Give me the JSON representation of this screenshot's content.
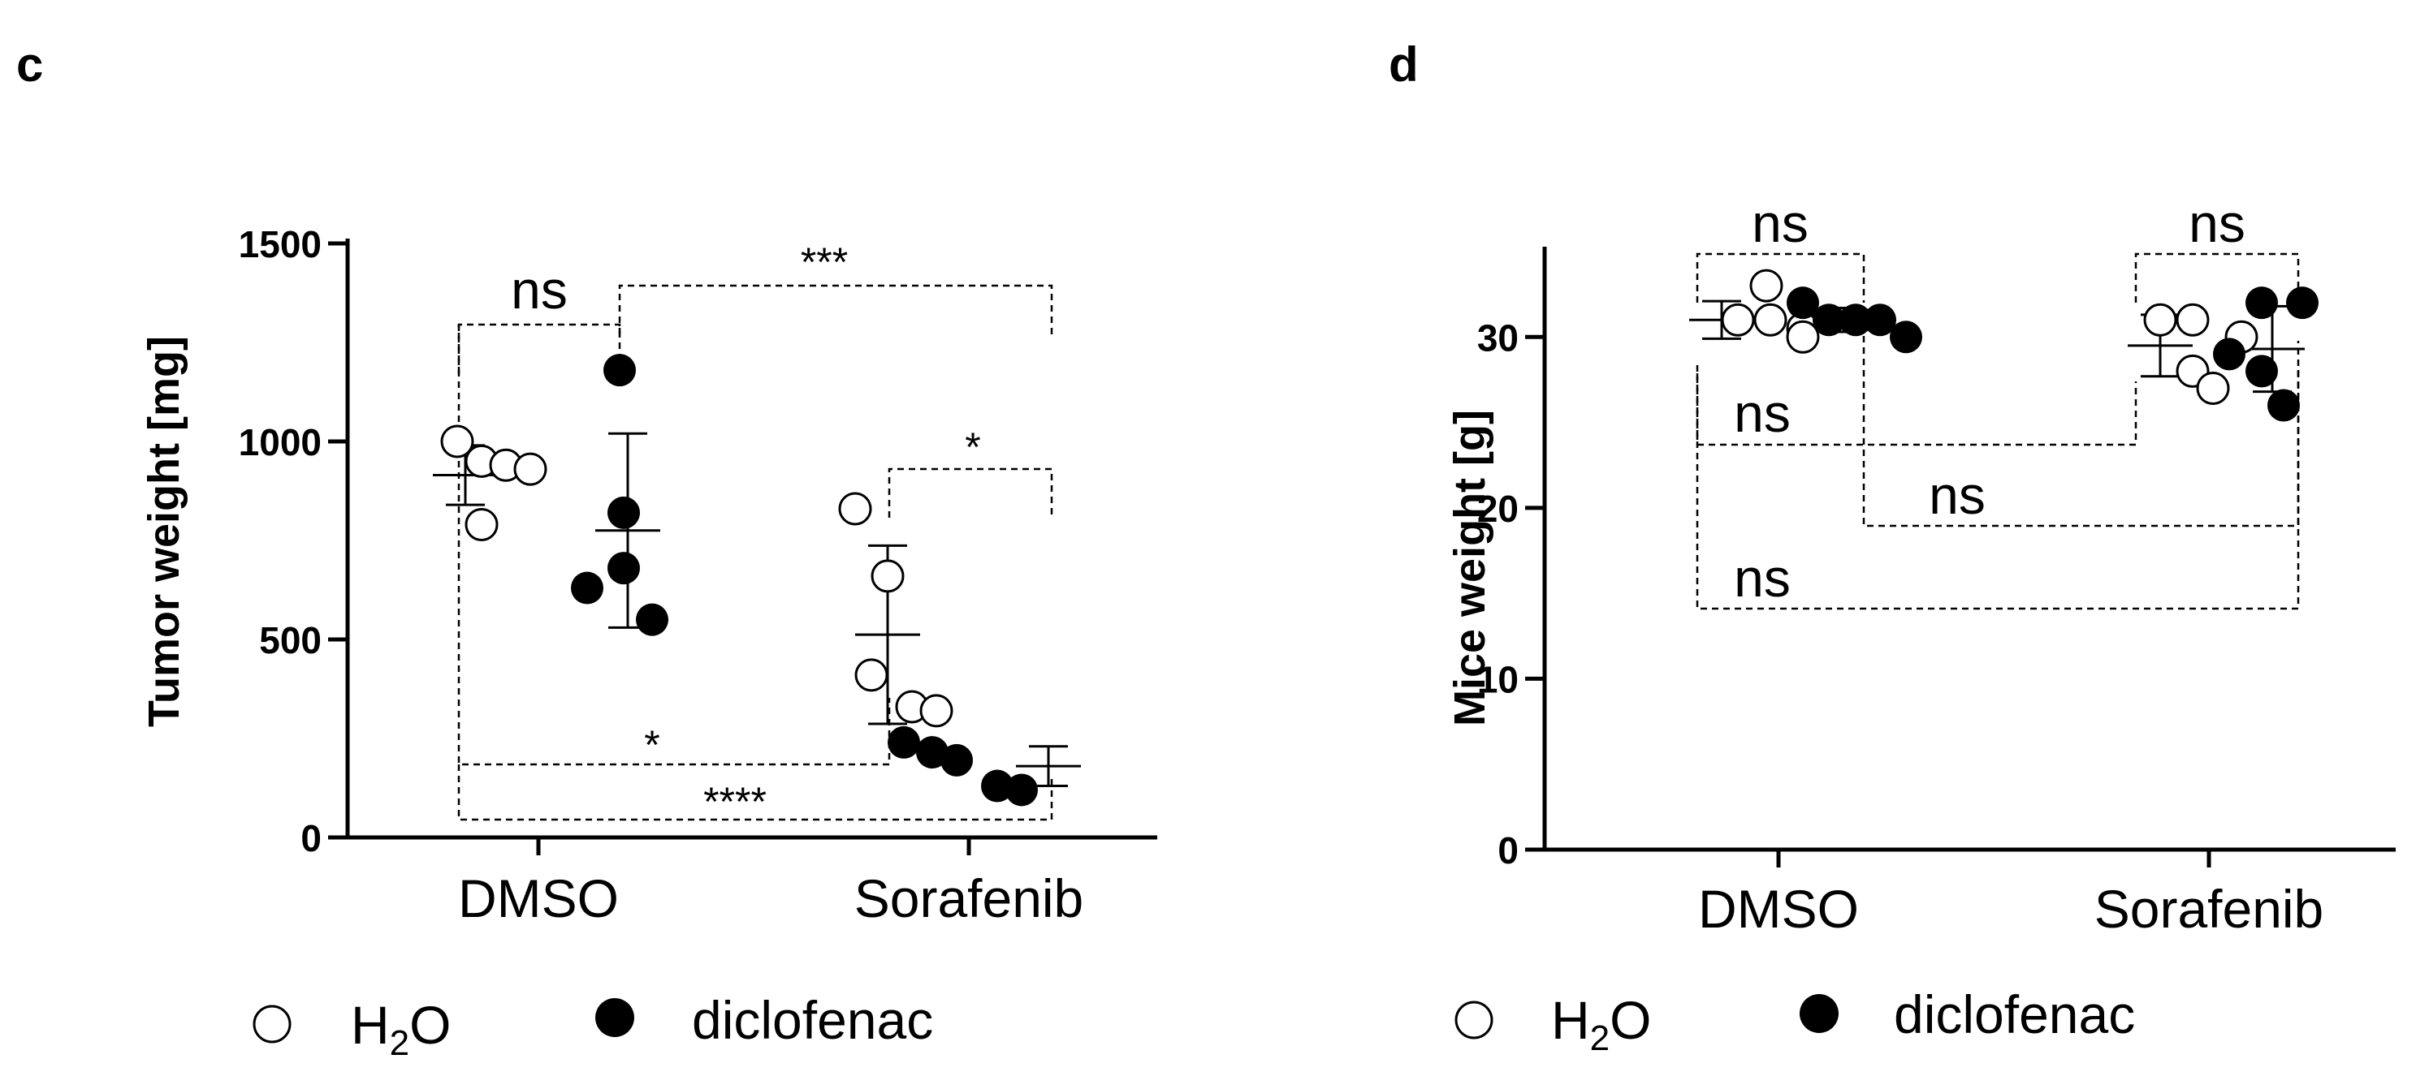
{
  "chart_data": [
    {
      "type": "scatter",
      "panel_label": "c",
      "title": "",
      "xlabel": "",
      "ylabel": "Tumor weight [mg]",
      "ylim": [
        0,
        1500
      ],
      "yticks": [
        "0",
        "500",
        "1000",
        "1500"
      ],
      "categories": [
        "DMSO",
        "Sorafenib"
      ],
      "series": [
        {
          "name": "H2O",
          "marker": "open-circle",
          "values": [
            [
              1000,
              950,
              940,
              930,
              790
            ],
            [
              830,
              660,
              410,
              330,
              320
            ]
          ],
          "mean": [
            915,
            512
          ],
          "sd": [
            75,
            225
          ]
        },
        {
          "name": "diclofenac",
          "marker": "filled-circle",
          "values": [
            [
              1180,
              820,
              680,
              630,
              550
            ],
            [
              240,
              215,
              195,
              130,
              120
            ]
          ],
          "mean": [
            775,
            180
          ],
          "sd": [
            245,
            50
          ]
        }
      ],
      "significance": [
        {
          "label": "ns",
          "from": "DMSO H2O",
          "to": "DMSO diclofenac"
        },
        {
          "label": "***",
          "from": "DMSO diclofenac",
          "to": "Sorafenib diclofenac"
        },
        {
          "label": "*",
          "from": "Sorafenib H2O",
          "to": "Sorafenib diclofenac"
        },
        {
          "label": "*",
          "from": "DMSO H2O",
          "to": "Sorafenib H2O"
        },
        {
          "label": "****",
          "from": "DMSO H2O",
          "to": "Sorafenib diclofenac"
        }
      ]
    },
    {
      "type": "scatter",
      "panel_label": "d",
      "title": "",
      "xlabel": "",
      "ylabel": "Mice weight [g]",
      "ylim": [
        0,
        35
      ],
      "yticks": [
        "0",
        "10",
        "20",
        "30"
      ],
      "categories": [
        "DMSO",
        "Sorafenib"
      ],
      "series": [
        {
          "name": "H2O",
          "marker": "open-circle",
          "values": [
            [
              33,
              31,
              31,
              30.5,
              30
            ],
            [
              31,
              31,
              30,
              28,
              27
            ]
          ],
          "mean": [
            31,
            29.5
          ],
          "sd": [
            1.1,
            1.8
          ]
        },
        {
          "name": "diclofenac",
          "marker": "filled-circle",
          "values": [
            [
              32,
              31,
              31,
              31,
              30
            ],
            [
              32,
              32,
              29,
              28,
              26
            ]
          ],
          "mean": [
            31,
            29.3
          ],
          "sd": [
            0.7,
            2.5
          ]
        }
      ],
      "significance": [
        {
          "label": "ns",
          "from": "DMSO H2O",
          "to": "DMSO diclofenac"
        },
        {
          "label": "ns",
          "from": "Sorafenib H2O",
          "to": "Sorafenib diclofenac"
        },
        {
          "label": "ns",
          "from": "DMSO H2O",
          "to": "Sorafenib H2O"
        },
        {
          "label": "ns",
          "from": "DMSO diclofenac",
          "to": "Sorafenib diclofenac"
        },
        {
          "label": "ns",
          "from": "DMSO H2O",
          "to": "Sorafenib diclofenac"
        }
      ]
    }
  ],
  "legend": {
    "h2o_main": "H",
    "h2o_sub": "2",
    "h2o_tail": "O",
    "diclofenac": "diclofenac"
  }
}
